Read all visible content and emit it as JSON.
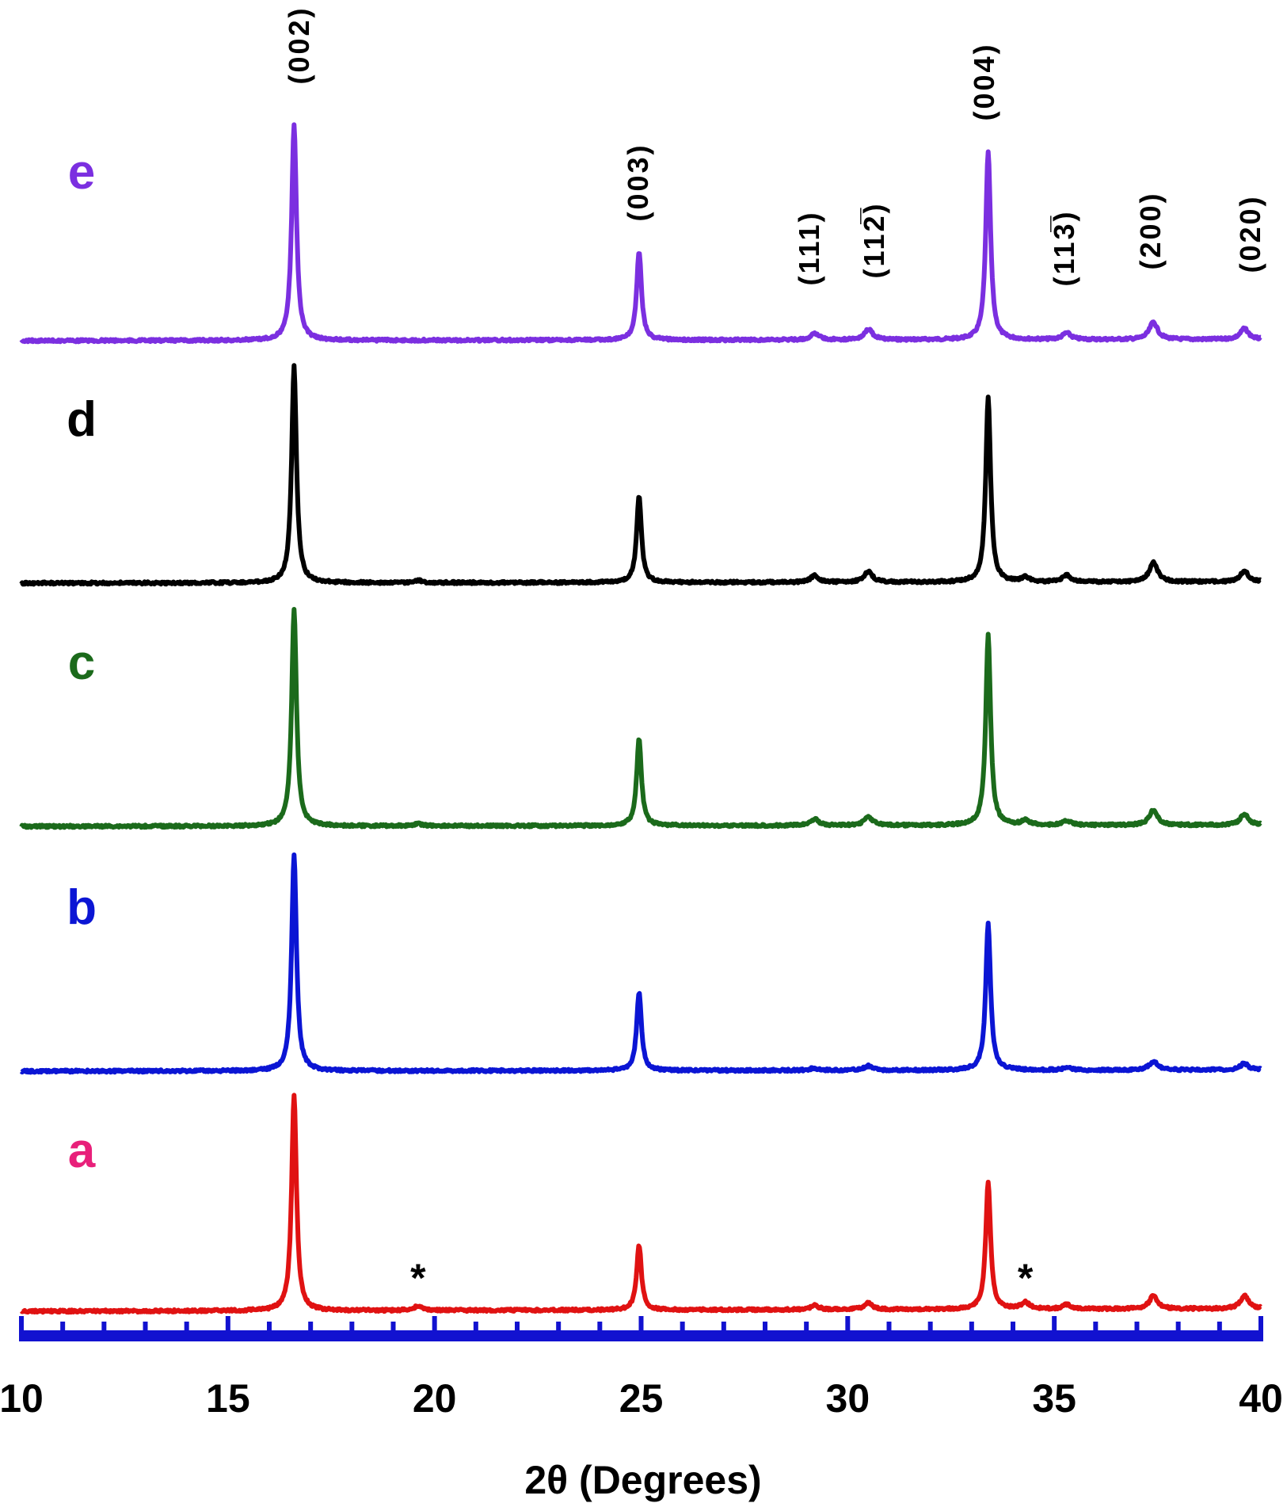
{
  "chart_data": {
    "type": "line",
    "title": "",
    "xlabel": "2θ (Degrees)",
    "ylabel": "",
    "xlim": [
      10,
      40
    ],
    "x_ticks": [
      "10",
      "15",
      "20",
      "25",
      "30",
      "35",
      "40"
    ],
    "x_minor_step": 1,
    "grid": false,
    "stacked_offset": true,
    "peak_positions": [
      16.6,
      24.95,
      29.2,
      30.5,
      33.4,
      35.3,
      37.4,
      39.6
    ],
    "reflections": [
      {
        "label": "(002)",
        "x": 16.6
      },
      {
        "label": "(003)",
        "x": 24.95
      },
      {
        "label": "(111)",
        "x": 29.2
      },
      {
        "label": "(11̅2)",
        "display": "(112̅)",
        "x": 30.5
      },
      {
        "label": "(004)",
        "x": 33.4
      },
      {
        "label": "(113̅)",
        "x": 35.3
      },
      {
        "label": "(200)",
        "x": 37.4
      },
      {
        "label": "(020)",
        "x": 39.6
      }
    ],
    "impurity_markers": [
      {
        "label": "*",
        "x": 19.6
      },
      {
        "label": "*",
        "x": 34.3
      }
    ],
    "series": [
      {
        "name": "e",
        "color": "#7b2fe0",
        "label_color": "#7b2fe0",
        "peaks": [
          [
            16.6,
            100
          ],
          [
            24.95,
            41
          ],
          [
            29.2,
            3
          ],
          [
            30.5,
            5
          ],
          [
            33.4,
            87
          ],
          [
            35.3,
            3
          ],
          [
            37.4,
            8
          ],
          [
            39.6,
            5
          ]
        ]
      },
      {
        "name": "d",
        "color": "#000000",
        "label_color": "#000000",
        "peaks": [
          [
            16.6,
            100
          ],
          [
            19.6,
            1
          ],
          [
            24.95,
            40
          ],
          [
            29.2,
            3
          ],
          [
            30.5,
            5
          ],
          [
            33.4,
            86
          ],
          [
            34.3,
            2
          ],
          [
            35.3,
            3
          ],
          [
            37.4,
            9
          ],
          [
            39.6,
            5
          ]
        ]
      },
      {
        "name": "c",
        "color": "#1b6a1b",
        "label_color": "#1b6a1b",
        "peaks": [
          [
            16.6,
            100
          ],
          [
            19.6,
            1
          ],
          [
            24.95,
            40
          ],
          [
            29.2,
            3
          ],
          [
            30.5,
            4
          ],
          [
            33.4,
            88
          ],
          [
            34.3,
            2
          ],
          [
            35.3,
            2
          ],
          [
            37.4,
            7
          ],
          [
            39.6,
            5
          ]
        ]
      },
      {
        "name": "b",
        "color": "#0b15d4",
        "label_color": "#0b15d4",
        "peaks": [
          [
            16.6,
            100
          ],
          [
            24.95,
            36
          ],
          [
            29.2,
            1
          ],
          [
            30.5,
            2
          ],
          [
            33.4,
            68
          ],
          [
            35.3,
            1
          ],
          [
            37.4,
            4
          ],
          [
            39.6,
            3
          ]
        ]
      },
      {
        "name": "a",
        "color": "#e01212",
        "label_color": "#e8207a",
        "peaks": [
          [
            16.6,
            100
          ],
          [
            19.6,
            2
          ],
          [
            24.95,
            30
          ],
          [
            29.2,
            2
          ],
          [
            30.5,
            3
          ],
          [
            33.4,
            59
          ],
          [
            34.3,
            3
          ],
          [
            35.3,
            2
          ],
          [
            37.4,
            6
          ],
          [
            39.6,
            6
          ]
        ]
      }
    ],
    "axis_color": "#1212d0"
  }
}
